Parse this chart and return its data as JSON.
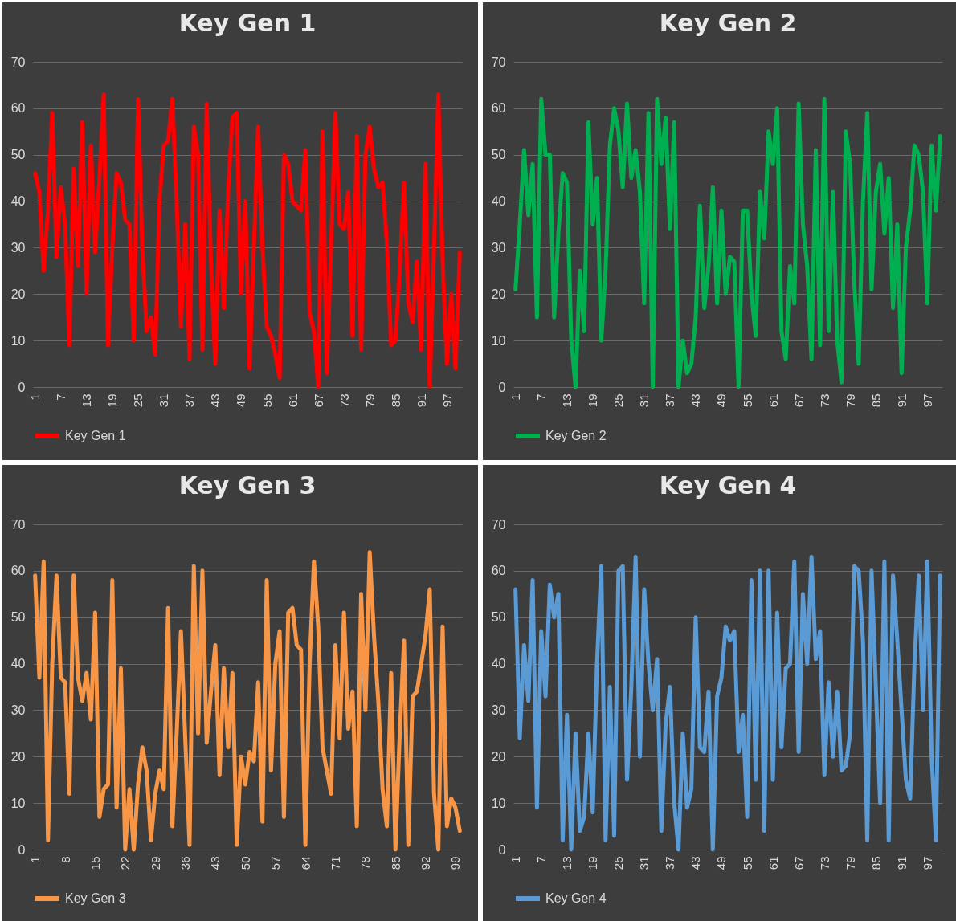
{
  "chart_data": [
    {
      "type": "line",
      "title": "Key Gen 1",
      "categories": [
        "1",
        null,
        null,
        null,
        null,
        null,
        "7",
        null,
        null,
        null,
        null,
        null,
        "13",
        null,
        null,
        null,
        null,
        null,
        "19",
        null,
        null,
        null,
        null,
        null,
        "25",
        null,
        null,
        null,
        null,
        null,
        "31",
        null,
        null,
        null,
        null,
        null,
        "37",
        null,
        null,
        null,
        null,
        null,
        "43",
        null,
        null,
        null,
        null,
        null,
        "49",
        null,
        null,
        null,
        null,
        null,
        "55",
        null,
        null,
        null,
        null,
        null,
        "61",
        null,
        null,
        null,
        null,
        null,
        "67",
        null,
        null,
        null,
        null,
        null,
        "73",
        null,
        null,
        null,
        null,
        null,
        "79",
        null,
        null,
        null,
        null,
        null,
        "85",
        null,
        null,
        null,
        null,
        null,
        "91",
        null,
        null,
        null,
        null,
        null,
        "97",
        null,
        null,
        null
      ],
      "series": [
        {
          "name": "Key Gen 1",
          "color": "#ff0000",
          "values": [
            46,
            42,
            25,
            38,
            59,
            28,
            43,
            35,
            9,
            47,
            26,
            57,
            20,
            52,
            29,
            45,
            63,
            9,
            30,
            46,
            44,
            36,
            35,
            10,
            62,
            30,
            12,
            15,
            7,
            40,
            52,
            53,
            62,
            40,
            13,
            35,
            6,
            56,
            50,
            8,
            61,
            27,
            5,
            38,
            17,
            42,
            58,
            59,
            20,
            40,
            4,
            30,
            56,
            30,
            13,
            11,
            7,
            2,
            50,
            48,
            40,
            39,
            38,
            51,
            16,
            12,
            0,
            55,
            3,
            30,
            59,
            35,
            34,
            42,
            11,
            54,
            8,
            50,
            56,
            47,
            43,
            44,
            31,
            9,
            10,
            25,
            44,
            18,
            14,
            27,
            8,
            48,
            0,
            30,
            63,
            27,
            5,
            20,
            4,
            29
          ]
        }
      ],
      "ylim": [
        0,
        70
      ],
      "yticks": [
        0,
        10,
        20,
        30,
        40,
        50,
        60,
        70
      ],
      "grid": "y",
      "legend": "bottom",
      "marker": "none",
      "line_style": "solid"
    },
    {
      "type": "line",
      "title": "Key Gen 2",
      "categories": [
        "1",
        null,
        null,
        null,
        null,
        null,
        "7",
        null,
        null,
        null,
        null,
        null,
        "13",
        null,
        null,
        null,
        null,
        null,
        "19",
        null,
        null,
        null,
        null,
        null,
        "25",
        null,
        null,
        null,
        null,
        null,
        "31",
        null,
        null,
        null,
        null,
        null,
        "37",
        null,
        null,
        null,
        null,
        null,
        "43",
        null,
        null,
        null,
        null,
        null,
        "49",
        null,
        null,
        null,
        null,
        null,
        "55",
        null,
        null,
        null,
        null,
        null,
        "61",
        null,
        null,
        null,
        null,
        null,
        "67",
        null,
        null,
        null,
        null,
        null,
        "73",
        null,
        null,
        null,
        null,
        null,
        "79",
        null,
        null,
        null,
        null,
        null,
        "85",
        null,
        null,
        null,
        null,
        null,
        "91",
        null,
        null,
        null,
        null,
        null,
        "97",
        null,
        null,
        null
      ],
      "series": [
        {
          "name": "Key Gen 2",
          "color": "#00b050",
          "values": [
            21,
            35,
            51,
            37,
            48,
            15,
            62,
            50,
            50,
            15,
            33,
            46,
            44,
            10,
            0,
            25,
            12,
            57,
            35,
            45,
            10,
            25,
            52,
            60,
            55,
            43,
            61,
            45,
            51,
            42,
            18,
            59,
            0,
            62,
            48,
            58,
            34,
            57,
            0,
            10,
            3,
            5,
            15,
            39,
            17,
            26,
            43,
            18,
            38,
            20,
            28,
            27,
            0,
            38,
            38,
            20,
            11,
            42,
            32,
            55,
            48,
            60,
            12,
            6,
            26,
            18,
            61,
            35,
            26,
            6,
            51,
            9,
            62,
            12,
            42,
            10,
            1,
            55,
            48,
            22,
            5,
            40,
            59,
            21,
            42,
            48,
            33,
            45,
            17,
            35,
            3,
            30,
            38,
            52,
            50,
            42,
            18,
            52,
            38,
            54
          ]
        }
      ],
      "ylim": [
        0,
        70
      ],
      "yticks": [
        0,
        10,
        20,
        30,
        40,
        50,
        60,
        70
      ],
      "grid": "y",
      "legend": "bottom",
      "marker": "none",
      "line_style": "solid"
    },
    {
      "type": "line",
      "title": "Key Gen 3",
      "categories": [
        "1",
        null,
        null,
        null,
        null,
        null,
        null,
        "8",
        null,
        null,
        null,
        null,
        null,
        null,
        "15",
        null,
        null,
        null,
        null,
        null,
        null,
        "22",
        null,
        null,
        null,
        null,
        null,
        null,
        "29",
        null,
        null,
        null,
        null,
        null,
        null,
        "36",
        null,
        null,
        null,
        null,
        null,
        null,
        "43",
        null,
        null,
        null,
        null,
        null,
        null,
        "50",
        null,
        null,
        null,
        null,
        null,
        null,
        "57",
        null,
        null,
        null,
        null,
        null,
        null,
        "64",
        null,
        null,
        null,
        null,
        null,
        null,
        "71",
        null,
        null,
        null,
        null,
        null,
        null,
        "78",
        null,
        null,
        null,
        null,
        null,
        null,
        "85",
        null,
        null,
        null,
        null,
        null,
        null,
        "92",
        null,
        null,
        null,
        null,
        null,
        null,
        "99",
        null
      ],
      "series": [
        {
          "name": "Key Gen 3",
          "color": "#f79646",
          "values": [
            59,
            37,
            62,
            2,
            40,
            59,
            37,
            36,
            12,
            59,
            37,
            32,
            38,
            28,
            51,
            7,
            13,
            14,
            58,
            9,
            39,
            0,
            13,
            0,
            14,
            22,
            17,
            2,
            12,
            17,
            13,
            52,
            5,
            25,
            47,
            24,
            1,
            61,
            25,
            60,
            23,
            34,
            44,
            16,
            39,
            22,
            38,
            1,
            20,
            14,
            21,
            19,
            36,
            6,
            58,
            17,
            40,
            47,
            7,
            51,
            52,
            44,
            43,
            1,
            40,
            62,
            48,
            22,
            17,
            12,
            44,
            24,
            51,
            26,
            34,
            5,
            55,
            30,
            64,
            46,
            32,
            13,
            5,
            38,
            0,
            25,
            45,
            1,
            33,
            34,
            40,
            46,
            56,
            12,
            0,
            48,
            5,
            11,
            9,
            4
          ]
        }
      ],
      "ylim": [
        0,
        70
      ],
      "yticks": [
        0,
        10,
        20,
        30,
        40,
        50,
        60,
        70
      ],
      "grid": "y",
      "legend": "bottom",
      "marker": "none",
      "line_style": "solid"
    },
    {
      "type": "line",
      "title": "Key Gen 4",
      "categories": [
        "1",
        null,
        null,
        null,
        null,
        null,
        "7",
        null,
        null,
        null,
        null,
        null,
        "13",
        null,
        null,
        null,
        null,
        null,
        "19",
        null,
        null,
        null,
        null,
        null,
        "25",
        null,
        null,
        null,
        null,
        null,
        "31",
        null,
        null,
        null,
        null,
        null,
        "37",
        null,
        null,
        null,
        null,
        null,
        "43",
        null,
        null,
        null,
        null,
        null,
        "49",
        null,
        null,
        null,
        null,
        null,
        "55",
        null,
        null,
        null,
        null,
        null,
        "61",
        null,
        null,
        null,
        null,
        null,
        "67",
        null,
        null,
        null,
        null,
        null,
        "73",
        null,
        null,
        null,
        null,
        null,
        "79",
        null,
        null,
        null,
        null,
        null,
        "85",
        null,
        null,
        null,
        null,
        null,
        "91",
        null,
        null,
        null,
        null,
        null,
        "97",
        null,
        null,
        null
      ],
      "series": [
        {
          "name": "Key Gen 4",
          "color": "#5b9bd5",
          "values": [
            56,
            24,
            44,
            32,
            58,
            9,
            47,
            33,
            57,
            50,
            55,
            2,
            29,
            0,
            25,
            4,
            7,
            25,
            8,
            40,
            61,
            2,
            35,
            3,
            60,
            61,
            15,
            35,
            63,
            20,
            56,
            40,
            30,
            41,
            4,
            27,
            35,
            10,
            0,
            25,
            9,
            13,
            50,
            22,
            21,
            34,
            0,
            33,
            37,
            48,
            45,
            47,
            21,
            29,
            7,
            58,
            15,
            60,
            4,
            60,
            15,
            51,
            22,
            39,
            40,
            62,
            21,
            55,
            40,
            63,
            41,
            47,
            16,
            36,
            20,
            34,
            17,
            18,
            25,
            61,
            60,
            45,
            2,
            60,
            35,
            10,
            62,
            2,
            59,
            45,
            30,
            15,
            11,
            40,
            59,
            30,
            62,
            20,
            2,
            59
          ]
        }
      ],
      "ylim": [
        0,
        70
      ],
      "yticks": [
        0,
        10,
        20,
        30,
        40,
        50,
        60,
        70
      ],
      "grid": "y",
      "legend": "bottom",
      "marker": "none",
      "line_style": "solid"
    }
  ]
}
